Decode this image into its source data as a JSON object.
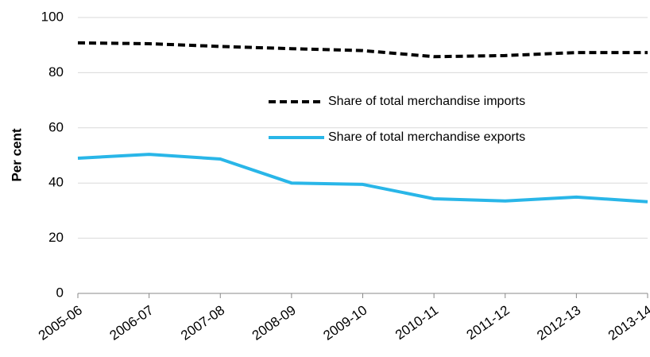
{
  "chart_data": {
    "type": "line",
    "y_label": "Per cent",
    "categories": [
      "2005-06",
      "2006-07",
      "2007-08",
      "2008-09",
      "2009-10",
      "2010-11",
      "2011-12",
      "2012-13",
      "2013-14"
    ],
    "series": [
      {
        "name": "Share of total merchandise imports",
        "color": "#000000",
        "dashed": true,
        "values": [
          90.8,
          90.5,
          89.5,
          88.7,
          88.0,
          85.8,
          86.2,
          87.3,
          87.3
        ]
      },
      {
        "name": "Share of total merchandise exports",
        "color": "#29b6e8",
        "dashed": false,
        "values": [
          49.0,
          50.4,
          48.7,
          40.0,
          39.5,
          34.3,
          33.5,
          34.9,
          33.2
        ]
      }
    ],
    "ylim": [
      0,
      100
    ],
    "yticks": [
      0,
      20,
      40,
      60,
      80,
      100
    ],
    "grid": true
  }
}
